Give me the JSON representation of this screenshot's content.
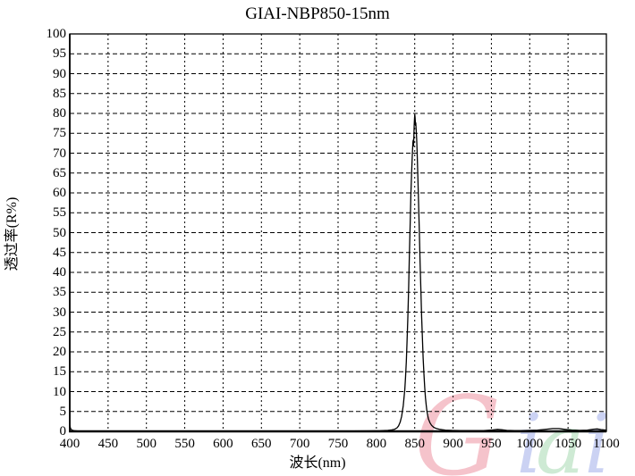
{
  "chart_data": {
    "type": "line",
    "title": "GIAI-NBP850-15nm",
    "xlabel": "波长(nm)",
    "ylabel": "透过率(R%)",
    "xlim": [
      400,
      1100
    ],
    "ylim": [
      0,
      100
    ],
    "x_ticks": [
      400,
      450,
      500,
      550,
      600,
      650,
      700,
      750,
      800,
      850,
      900,
      950,
      1000,
      1050,
      1100
    ],
    "y_ticks": [
      0,
      5,
      10,
      15,
      20,
      25,
      30,
      35,
      40,
      45,
      50,
      55,
      60,
      65,
      70,
      75,
      80,
      85,
      90,
      95,
      100
    ],
    "grid": "dashed",
    "background": "#ffffff",
    "line_color": "#000000",
    "peak": {
      "center_nm": 850,
      "peak_transmittance_pct": 79.7,
      "fwhm_nm": 15
    },
    "series": [
      {
        "name": "transmittance",
        "points": [
          [
            400,
            1.5
          ],
          [
            401,
            0.7
          ],
          [
            403,
            0.3
          ],
          [
            406,
            0.15
          ],
          [
            410,
            0.1
          ],
          [
            430,
            0.1
          ],
          [
            460,
            0.1
          ],
          [
            500,
            0.1
          ],
          [
            540,
            0.1
          ],
          [
            580,
            0.1
          ],
          [
            620,
            0.1
          ],
          [
            660,
            0.1
          ],
          [
            700,
            0.1
          ],
          [
            740,
            0.1
          ],
          [
            770,
            0.1
          ],
          [
            790,
            0.12
          ],
          [
            805,
            0.15
          ],
          [
            815,
            0.25
          ],
          [
            820,
            0.35
          ],
          [
            824,
            0.55
          ],
          [
            827,
            0.9
          ],
          [
            829,
            1.4
          ],
          [
            831,
            2.3
          ],
          [
            833,
            3.8
          ],
          [
            835,
            6.5
          ],
          [
            837,
            10.5
          ],
          [
            838,
            13.5
          ],
          [
            839,
            17.5
          ],
          [
            840,
            22.5
          ],
          [
            841,
            28.5
          ],
          [
            842,
            36
          ],
          [
            843,
            44
          ],
          [
            844,
            52
          ],
          [
            845,
            59.5
          ],
          [
            846,
            65.5
          ],
          [
            847,
            70
          ],
          [
            847.6,
            72.8
          ],
          [
            848.1,
            73.3
          ],
          [
            848.5,
            71.8
          ],
          [
            848.9,
            74.5
          ],
          [
            849.3,
            77
          ],
          [
            849.7,
            78.8
          ],
          [
            850.1,
            79.7
          ],
          [
            850.5,
            79
          ],
          [
            851,
            77
          ],
          [
            851.4,
            77.6
          ],
          [
            851.8,
            76
          ],
          [
            852.5,
            73.5
          ],
          [
            853,
            71
          ],
          [
            854,
            65
          ],
          [
            855,
            57.5
          ],
          [
            856,
            50
          ],
          [
            857,
            42.5
          ],
          [
            858,
            35.5
          ],
          [
            859,
            29
          ],
          [
            860,
            23.5
          ],
          [
            861,
            18.5
          ],
          [
            862,
            14.5
          ],
          [
            863,
            11
          ],
          [
            864,
            8.5
          ],
          [
            865,
            6.5
          ],
          [
            866,
            5
          ],
          [
            867,
            3.9
          ],
          [
            868,
            3.1
          ],
          [
            870,
            2.1
          ],
          [
            872,
            1.5
          ],
          [
            875,
            1
          ],
          [
            878,
            0.75
          ],
          [
            882,
            0.55
          ],
          [
            886,
            0.4
          ],
          [
            890,
            0.3
          ],
          [
            900,
            0.22
          ],
          [
            910,
            0.2
          ],
          [
            925,
            0.2
          ],
          [
            940,
            0.2
          ],
          [
            952,
            0.35
          ],
          [
            958,
            0.5
          ],
          [
            963,
            0.4
          ],
          [
            970,
            0.25
          ],
          [
            980,
            0.2
          ],
          [
            990,
            0.2
          ],
          [
            1000,
            0.25
          ],
          [
            1010,
            0.3
          ],
          [
            1022,
            0.55
          ],
          [
            1030,
            0.7
          ],
          [
            1038,
            0.7
          ],
          [
            1046,
            0.5
          ],
          [
            1055,
            0.3
          ],
          [
            1065,
            0.25
          ],
          [
            1075,
            0.3
          ],
          [
            1083,
            0.55
          ],
          [
            1088,
            0.6
          ],
          [
            1093,
            0.45
          ],
          [
            1100,
            0.3
          ]
        ]
      }
    ]
  },
  "watermark": {
    "text": "Giai",
    "letters": [
      {
        "ch": "G",
        "color": "#f4b9c3"
      },
      {
        "ch": "i",
        "color": "#c2cbf2"
      },
      {
        "ch": "a",
        "color": "#c6e7cd"
      },
      {
        "ch": "i",
        "color": "#c2cbf2"
      }
    ]
  }
}
